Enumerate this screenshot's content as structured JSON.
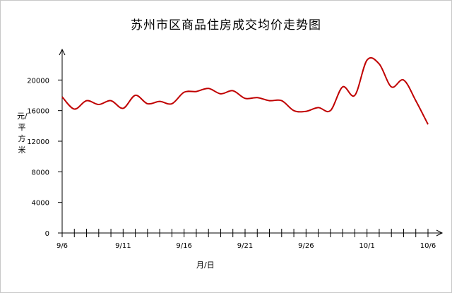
{
  "chart_data": {
    "type": "line",
    "title": "苏州市区商品住房成交均价走势图",
    "xlabel": "月/日",
    "ylabel": "元/平方米",
    "x": [
      "9/6",
      "9/7",
      "9/8",
      "9/9",
      "9/10",
      "9/11",
      "9/12",
      "9/13",
      "9/14",
      "9/15",
      "9/16",
      "9/17",
      "9/18",
      "9/19",
      "9/20",
      "9/21",
      "9/22",
      "9/23",
      "9/24",
      "9/25",
      "9/26",
      "9/27",
      "9/28",
      "9/29",
      "9/30",
      "10/1",
      "10/2",
      "10/3",
      "10/4",
      "10/5",
      "10/6"
    ],
    "x_tick_labels": [
      "9/6",
      "9/11",
      "9/16",
      "9/21",
      "9/26",
      "10/1",
      "10/6"
    ],
    "y_tick_labels": [
      "0",
      "4000",
      "8000",
      "12000",
      "16000",
      "20000"
    ],
    "ylim": [
      0,
      24000
    ],
    "series": [
      {
        "values": [
          17800,
          16200,
          17300,
          16800,
          17300,
          16300,
          18000,
          16900,
          17200,
          16900,
          18400,
          18500,
          18900,
          18200,
          18600,
          17600,
          17700,
          17300,
          17300,
          16000,
          15900,
          16400,
          16000,
          19100,
          18000,
          22600,
          22100,
          19100,
          20000,
          17300,
          14200
        ],
        "color": "#c00000"
      }
    ],
    "grid": false
  }
}
